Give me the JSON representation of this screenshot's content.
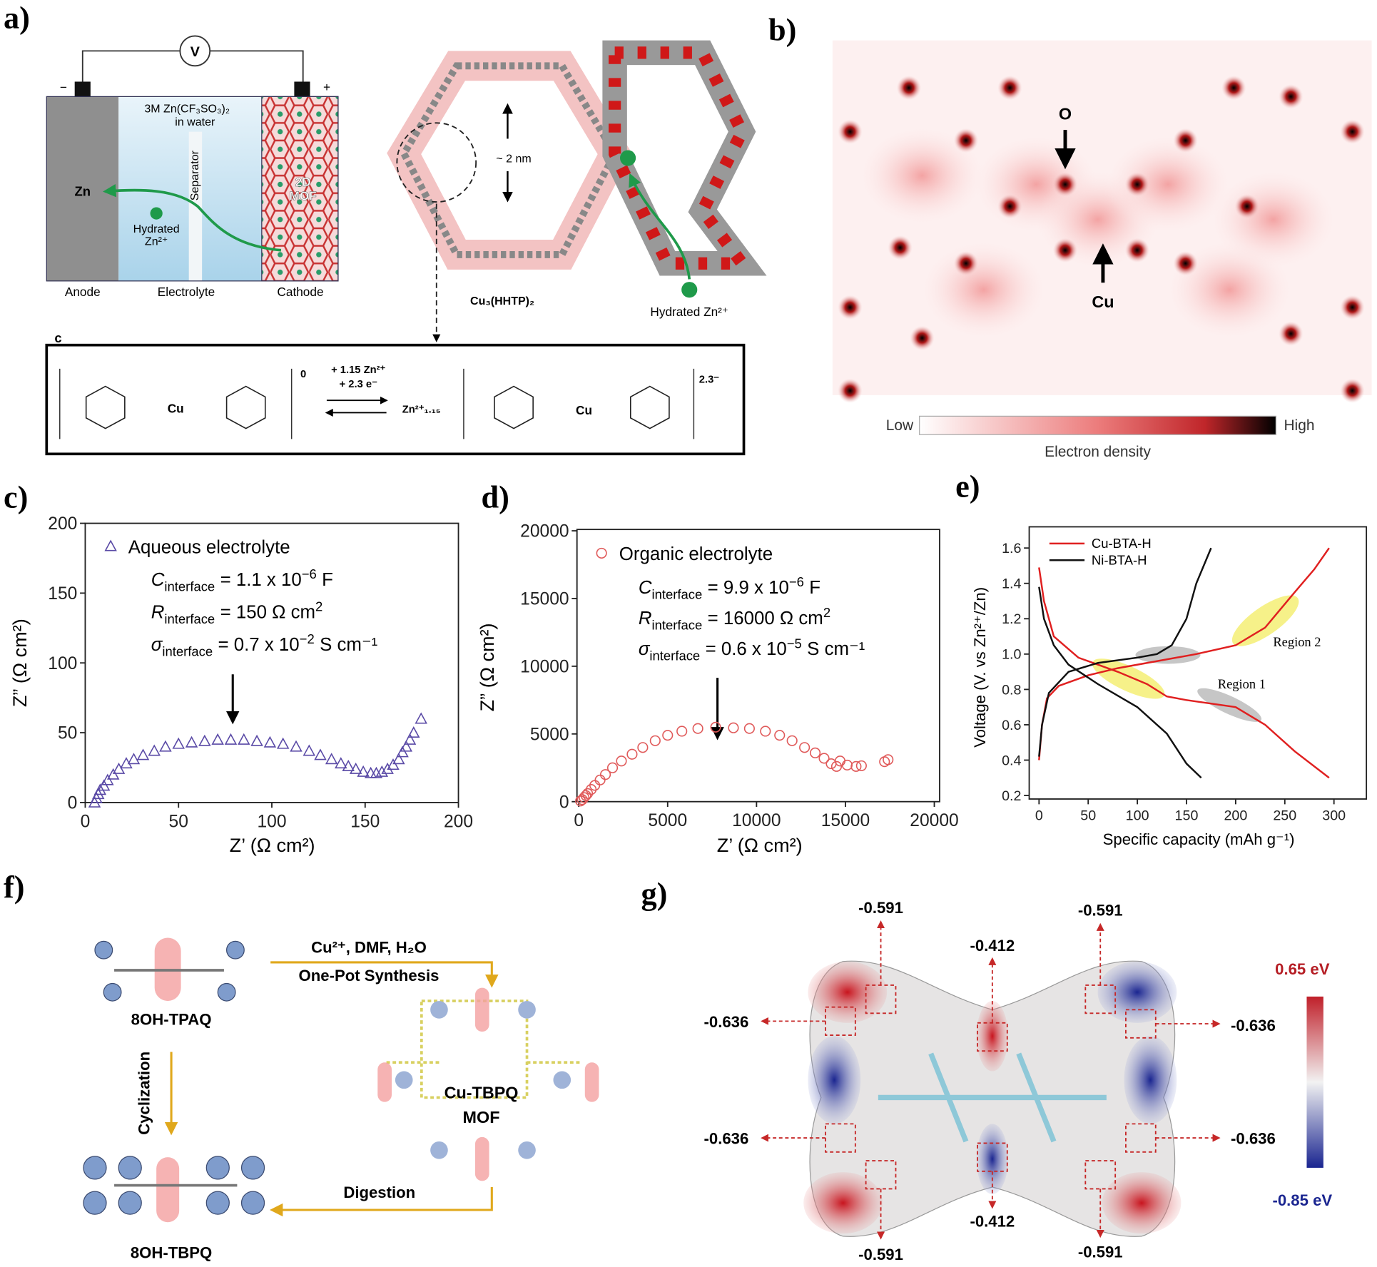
{
  "panel_labels": [
    "a)",
    "b)",
    "c)",
    "d)",
    "e)",
    "f)",
    "g)"
  ],
  "panel_a": {
    "voltmeter": "V",
    "minus": "−",
    "plus": "+",
    "electrolyte_lines": [
      "3M Zn(CF₃SO₃)₂",
      "in water"
    ],
    "separator": "Separator",
    "anode_metal": "Zn",
    "ion_lines": [
      "Hydrated",
      "Zn²⁺"
    ],
    "mof_lines": [
      "2D",
      "MOF"
    ],
    "anode": "Anode",
    "electrolyte": "Electrolyte",
    "cathode": "Cathode",
    "pore": "~ 2 nm",
    "framework": "Cu₃(HHTP)₂",
    "hydrated_ion": "Hydrated Zn²⁺",
    "inset_label": "c",
    "reaction_top": [
      "+ 1.15 Zn²⁺",
      "+ 2.3 e⁻"
    ],
    "reaction_product": "Zn²⁺₁.₁₅",
    "charge_left": "0",
    "charge_right": "2.3⁻",
    "metal_left": "Cu",
    "metal_right": "Cu"
  },
  "panel_b": {
    "oxygen": "O",
    "copper": "Cu",
    "low": "Low",
    "high": "High",
    "colorbar_title": "Electron density"
  },
  "chart_data": [
    {
      "type": "scatter",
      "x_label": "Z’ (Ω cm²)",
      "y_label": "Z” (Ω cm²)",
      "xlim": [
        0,
        200
      ],
      "ylim": [
        0,
        200
      ],
      "xticks": [
        0,
        50,
        100,
        150,
        200
      ],
      "yticks": [
        0,
        50,
        100,
        150,
        200
      ],
      "annotations": [
        {
          "symbol": "C",
          "subscript": "interface",
          "text": "= 1.1 x 10",
          "superscript": "−6",
          "unit": "F"
        },
        {
          "symbol": "R",
          "subscript": "interface",
          "text": "= 150 Ω cm",
          "superscript": "2"
        },
        {
          "symbol": "σ",
          "subscript": "interface",
          "text": "= 0.7 x 10",
          "superscript": "−2",
          "unit": "S cm⁻¹"
        }
      ],
      "x": [
        5,
        6,
        7,
        8,
        10,
        12,
        15,
        18,
        22,
        26,
        31,
        37,
        43,
        50,
        57,
        64,
        71,
        78,
        85,
        92,
        99,
        106,
        113,
        120,
        126,
        132,
        137,
        141,
        145,
        149,
        153,
        156,
        159,
        162,
        165,
        168,
        170,
        172,
        174,
        176,
        180
      ],
      "series": [
        {
          "name": "Aqueous electrolyte",
          "color": "#5a4aa6",
          "marker": "triangle",
          "values": [
            0,
            3,
            6,
            9,
            12,
            16,
            20,
            24,
            28,
            31,
            34,
            37,
            40,
            42,
            43,
            44,
            45,
            45,
            45,
            44,
            43,
            42,
            40,
            37,
            34,
            31,
            28,
            26,
            24,
            22,
            21,
            21,
            22,
            24,
            27,
            31,
            36,
            40,
            45,
            50,
            60
          ]
        }
      ]
    },
    {
      "type": "scatter",
      "x_label": "Z’ (Ω cm²)",
      "y_label": "Z” (Ω cm²)",
      "xlim": [
        -100,
        20300
      ],
      "ylim": [
        0,
        20100
      ],
      "xticks": [
        0,
        5000,
        10000,
        15000,
        20000
      ],
      "yticks": [
        0,
        5000,
        10000,
        15000,
        20000
      ],
      "annotations": [
        {
          "symbol": "C",
          "subscript": "interface",
          "text": "= 9.9 x 10",
          "superscript": "−6",
          "unit": "F"
        },
        {
          "symbol": "R",
          "subscript": "interface",
          "text": "= 16000 Ω cm",
          "superscript": "2"
        },
        {
          "symbol": "σ",
          "subscript": "interface",
          "text": "= 0.6 x 10",
          "superscript": "−5",
          "unit": "S cm⁻¹"
        }
      ],
      "x": [
        100,
        200,
        300,
        400,
        500,
        700,
        900,
        1200,
        1500,
        1900,
        2400,
        3000,
        3600,
        4300,
        5000,
        5800,
        6700,
        7700,
        8700,
        9600,
        10500,
        11300,
        12000,
        12700,
        13300,
        13800,
        14200,
        14500,
        14700,
        15100,
        15600,
        15900,
        17200,
        17400
      ],
      "series": [
        {
          "name": "Organic electrolyte",
          "color": "#e05a5a",
          "marker": "circle",
          "values": [
            50,
            150,
            300,
            450,
            600,
            900,
            1200,
            1600,
            2000,
            2500,
            3000,
            3500,
            4000,
            4500,
            4900,
            5200,
            5400,
            5500,
            5450,
            5400,
            5200,
            4900,
            4500,
            4000,
            3600,
            3200,
            2800,
            2600,
            3000,
            2700,
            2600,
            2650,
            2950,
            3100
          ]
        }
      ]
    },
    {
      "type": "line",
      "x_label": "Specific capacity (mAh g⁻¹)",
      "y_label": "Voltage (V. vs Zn²⁺/Zn)",
      "xlim": [
        -10,
        333
      ],
      "ylim": [
        0.18,
        1.72
      ],
      "xticks": [
        0,
        50,
        100,
        150,
        200,
        250,
        300
      ],
      "yticks": [
        0.2,
        0.4,
        0.6,
        0.8,
        {
          "value": 1,
          "label": "1.0"
        },
        1.2,
        1.4,
        1.6
      ],
      "legend": "upper left",
      "annotations": [
        "Region 2",
        "Region 1"
      ],
      "series": [
        {
          "name": "Cu-BTA-H",
          "color": "#e02020",
          "x": [
            0,
            3,
            8,
            20,
            50,
            80,
            120,
            160,
            200,
            230,
            260,
            280,
            295,
            null,
            0,
            5,
            15,
            40,
            80,
            110,
            130,
            150,
            200,
            230,
            260,
            295
          ],
          "values": [
            0.4,
            0.6,
            0.75,
            0.82,
            0.88,
            0.92,
            0.96,
            1.0,
            1.05,
            1.15,
            1.35,
            1.48,
            1.6,
            null,
            1.49,
            1.3,
            1.1,
            0.98,
            0.9,
            0.83,
            0.76,
            0.74,
            0.7,
            0.6,
            0.45,
            0.3
          ]
        },
        {
          "name": "Ni-BTA-H",
          "color": "#111111",
          "x": [
            0,
            3,
            10,
            30,
            60,
            100,
            120,
            135,
            150,
            160,
            175,
            null,
            0,
            5,
            15,
            30,
            60,
            100,
            130,
            150,
            165
          ],
          "values": [
            0.42,
            0.6,
            0.78,
            0.9,
            0.95,
            0.98,
            1.0,
            1.05,
            1.2,
            1.4,
            1.6,
            null,
            1.38,
            1.2,
            1.05,
            0.94,
            0.83,
            0.7,
            0.55,
            0.38,
            0.3
          ]
        }
      ]
    }
  ],
  "panel_f": {
    "reactant": "8OH-TPAQ",
    "conditions": "Cu²⁺, DMF, H₂O",
    "method": "One-Pot Synthesis",
    "cyclization": "Cyclization",
    "mof_lines": [
      "Cu-TBPQ",
      "MOF"
    ],
    "digestion": "Digestion",
    "product": "8OH-TBPQ"
  },
  "panel_g": {
    "labels": [
      "-0.591",
      "-0.591",
      "-0.412",
      "-0.636",
      "-0.636",
      "-0.636",
      "-0.636",
      "-0.412",
      "-0.591",
      "-0.591"
    ],
    "scale_max": "0.65 eV",
    "scale_min": "-0.85 eV"
  }
}
